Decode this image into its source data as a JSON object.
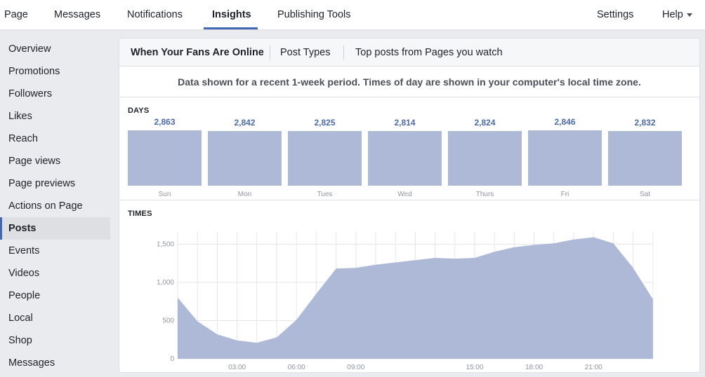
{
  "topnav": {
    "tabs": [
      "Page",
      "Messages",
      "Notifications",
      "Insights",
      "Publishing Tools"
    ],
    "settings": "Settings",
    "help": "Help"
  },
  "sidebar": {
    "items": [
      "Overview",
      "Promotions",
      "Followers",
      "Likes",
      "Reach",
      "Page views",
      "Page previews",
      "Actions on Page",
      "Posts",
      "Events",
      "Videos",
      "People",
      "Local",
      "Shop",
      "Messages"
    ],
    "active": "Posts"
  },
  "panel": {
    "subtabs": [
      "When Your Fans Are Online",
      "Post Types",
      "Top posts from Pages you watch"
    ],
    "notice": "Data shown for a recent 1-week period. Times of day are shown in your computer's local time zone.",
    "days_label": "DAYS",
    "times_label": "TIMES"
  },
  "colors": {
    "accent": "#4267b2",
    "bar": "#adb9d6",
    "count": "#4b6aa8"
  },
  "chart_data": [
    {
      "type": "bar",
      "categories": [
        "Sun",
        "Mon",
        "Tues",
        "Wed",
        "Thurs",
        "Fri",
        "Sat"
      ],
      "values": [
        2863,
        2842,
        2825,
        2814,
        2824,
        2846,
        2832
      ],
      "value_labels": [
        "2,863",
        "2,842",
        "2,825",
        "2,814",
        "2,824",
        "2,846",
        "2,832"
      ]
    },
    {
      "type": "area",
      "x": [
        0,
        1,
        2,
        3,
        4,
        5,
        6,
        7,
        8,
        9,
        10,
        11,
        12,
        13,
        14,
        15,
        16,
        17,
        18,
        19,
        20,
        21,
        22,
        23
      ],
      "values": [
        800,
        490,
        320,
        240,
        210,
        280,
        510,
        850,
        1180,
        1190,
        1230,
        1260,
        1290,
        1320,
        1310,
        1320,
        1400,
        1460,
        1490,
        1510,
        1560,
        1590,
        1510,
        1190
      ],
      "xticks": [
        "03:00",
        "06:00",
        "09:00",
        "15:00",
        "18:00",
        "21:00"
      ],
      "xtick_hours": [
        3,
        6,
        9,
        15,
        18,
        21
      ],
      "yticks": [
        0,
        500,
        1000,
        1500
      ],
      "ytick_labels": [
        "0",
        "500",
        "1,000",
        "1,500"
      ],
      "ylim": [
        0,
        1650
      ],
      "last_point": 780,
      "grid": true
    }
  ]
}
